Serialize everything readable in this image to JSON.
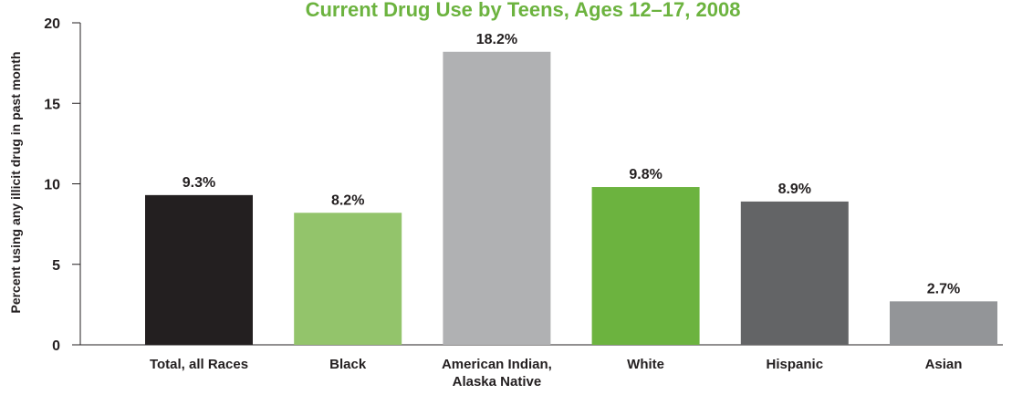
{
  "chart_data": {
    "type": "bar",
    "title": "Current Drug Use by Teens, Ages 12–17, 2008",
    "ylabel": "Percent using any illicit drug in past month",
    "xlabel": "",
    "ylim": [
      0,
      20
    ],
    "yticks": [
      0,
      5,
      10,
      15,
      20
    ],
    "grid": false,
    "categories": [
      [
        "Total, all Races"
      ],
      [
        "Black"
      ],
      [
        "American Indian,",
        "Alaska Native"
      ],
      [
        "White"
      ],
      [
        "Hispanic"
      ],
      [
        "Asian"
      ]
    ],
    "values": [
      9.3,
      8.2,
      18.2,
      9.8,
      8.9,
      2.7
    ],
    "value_labels": [
      "9.3%",
      "8.2%",
      "18.2%",
      "9.8%",
      "8.9%",
      "2.7%"
    ],
    "colors": [
      "#231f20",
      "#93c46b",
      "#b0b1b3",
      "#6cb33f",
      "#636466",
      "#939598"
    ],
    "title_color": "#6cb33f"
  }
}
